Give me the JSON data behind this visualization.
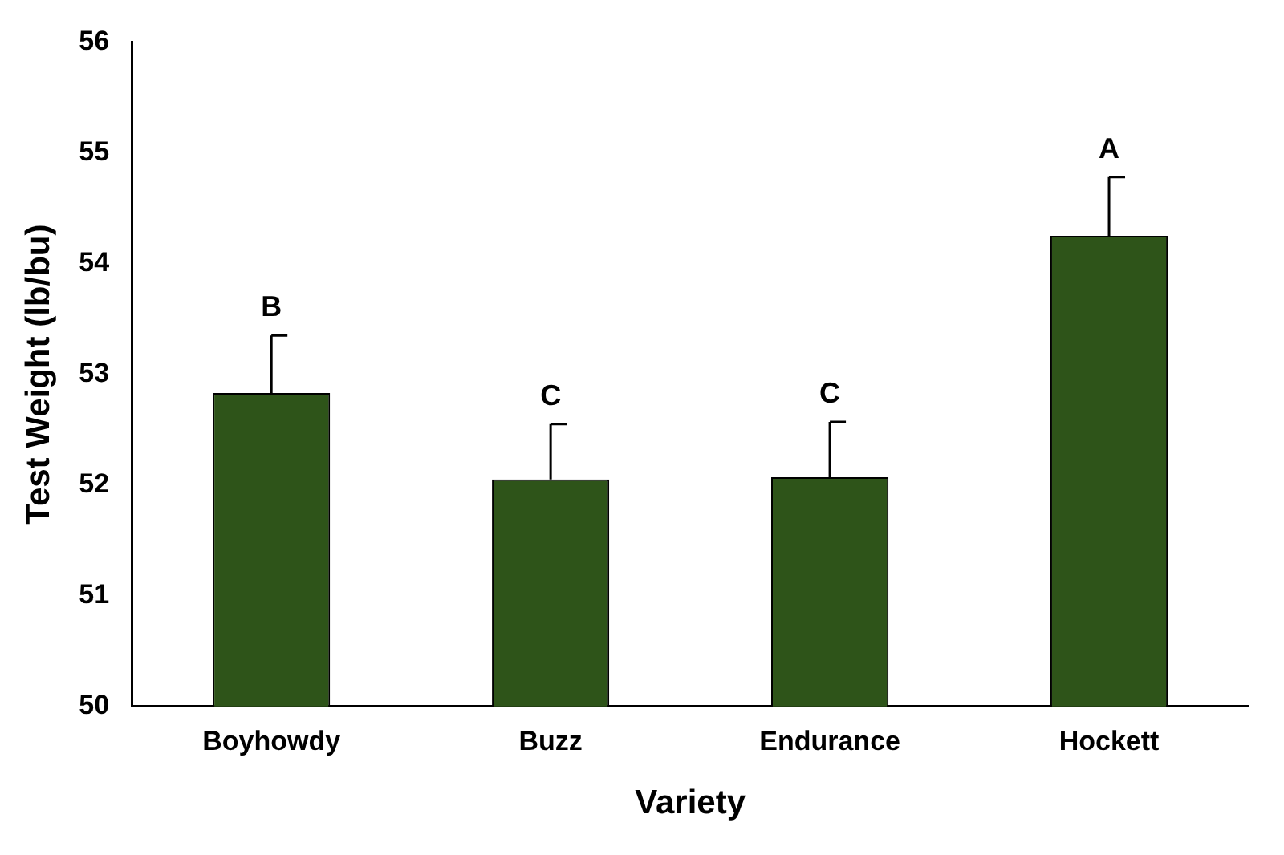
{
  "chart_data": {
    "type": "bar",
    "xlabel": "Variety",
    "ylabel": "Test Weight (lb/bu)",
    "categories": [
      "Boyhowdy",
      "Buzz",
      "Endurance",
      "Hockett"
    ],
    "values": [
      52.83,
      52.05,
      52.07,
      54.25
    ],
    "color": "#2e5419",
    "errors": [
      [
        52.83,
        53.35
      ],
      [
        52.05,
        52.55
      ],
      [
        52.07,
        52.57
      ],
      [
        54.25,
        54.78
      ]
    ],
    "ylim": [
      50,
      56
    ],
    "yticks": [
      50,
      51,
      52,
      53,
      54,
      55,
      56
    ],
    "grid": false,
    "legend": false,
    "annotations": [
      {
        "text": "B",
        "x": "Boyhowdy",
        "y": 53.35
      },
      {
        "text": "C",
        "x": "Buzz",
        "y": 52.55
      },
      {
        "text": "C",
        "x": "Endurance",
        "y": 52.57
      },
      {
        "text": "A",
        "x": "Hockett",
        "y": 54.78
      }
    ]
  }
}
